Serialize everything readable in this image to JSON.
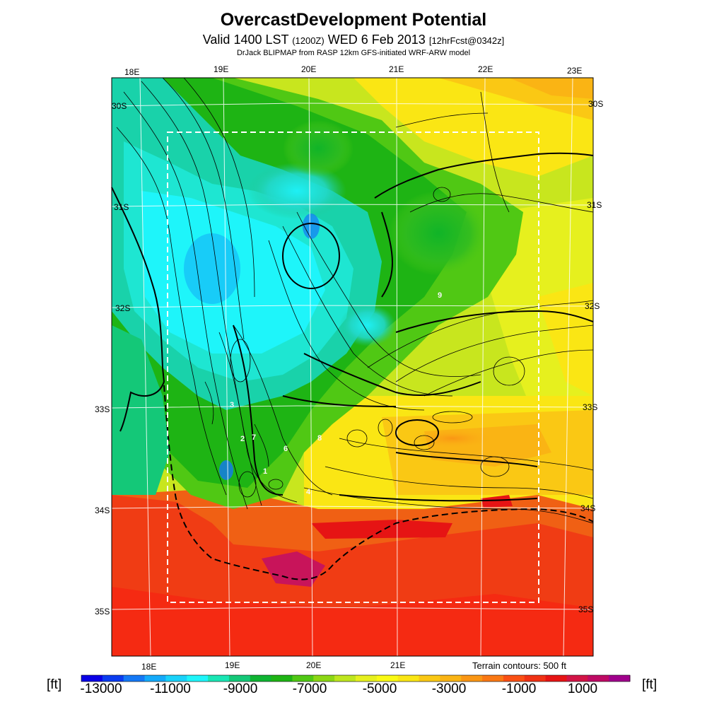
{
  "title": "OvercastDevelopment Potential",
  "subtitle": {
    "valid": "Valid 1400 LST",
    "utc": "(1200Z)",
    "date": "WED 6 Feb 2013",
    "forecast": "[12hrFcst@0342z]"
  },
  "credit": "DrJack BLIPMAP from RASP 12km GFS-initiated WRF-ARW model",
  "map": {
    "top_lon_labels": [
      "18E",
      "19E",
      "20E",
      "21E",
      "22E",
      "23E"
    ],
    "bottom_lon_labels": [
      "18E",
      "19E",
      "20E",
      "21E"
    ],
    "left_lat_labels": [
      "30S",
      "31S",
      "32S",
      "33S",
      "34S",
      "35S"
    ],
    "right_lat_labels": [
      "30S",
      "31S",
      "32S",
      "33S",
      "34S",
      "35S"
    ],
    "point_labels": [
      "9",
      "3",
      "2",
      "7",
      "6",
      "8",
      "1",
      "4"
    ],
    "terrain_note": "Terrain contours: 500 ft"
  },
  "colorbar": {
    "unit_left": "[ft]",
    "unit_right": "[ft]",
    "ticks": [
      "-13000",
      "-11000",
      "-9000",
      "-7000",
      "-5000",
      "-3000",
      "-1000",
      "1000"
    ],
    "colors": [
      "#0a00e6",
      "#0a3cf0",
      "#1478f5",
      "#14aafa",
      "#19d2fa",
      "#1ef5fa",
      "#19e6b4",
      "#14c878",
      "#0fb432",
      "#1eb414",
      "#50c814",
      "#8cd714",
      "#bee61e",
      "#e6f01e",
      "#fafa14",
      "#fae614",
      "#fac814",
      "#fab414",
      "#fa9614",
      "#fa7814",
      "#fa5014",
      "#f03214",
      "#e61414",
      "#d21446",
      "#be0a64",
      "#a0008c"
    ]
  }
}
